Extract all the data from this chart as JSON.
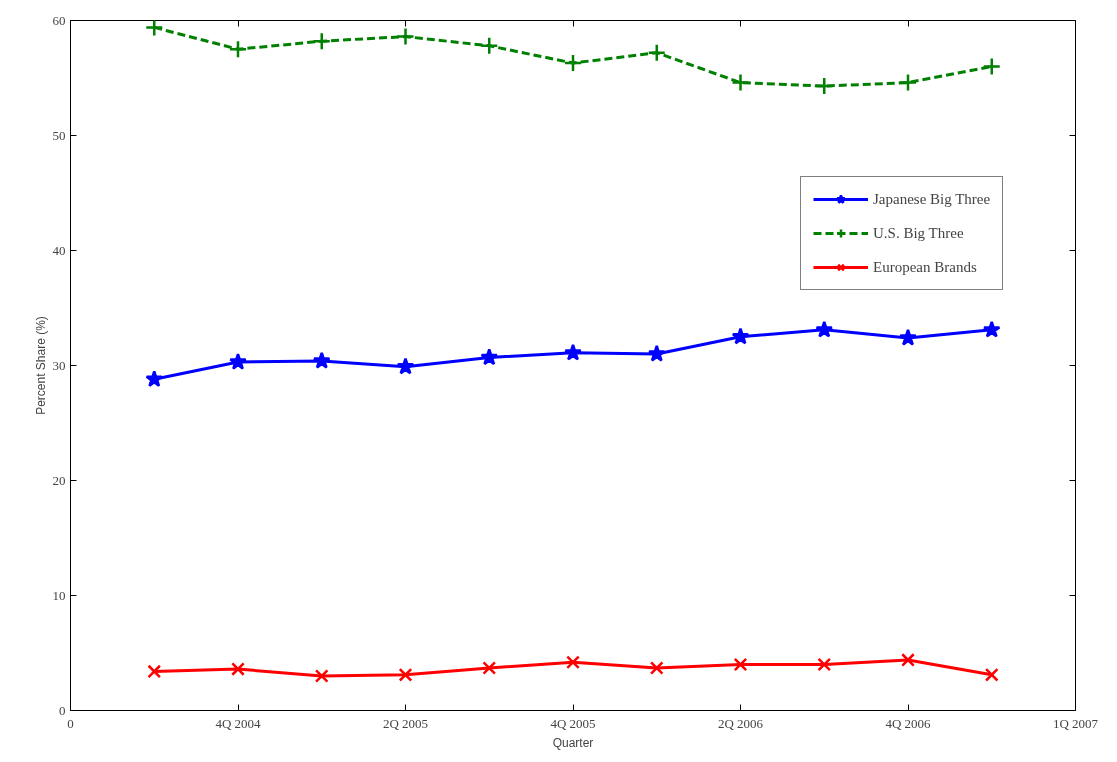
{
  "chart_data": {
    "type": "line",
    "xlabel": "Quarter",
    "ylabel": "Percent Share (%)",
    "categories": [
      "0",
      null,
      "4Q 2004",
      null,
      "2Q 2005",
      null,
      "4Q 2005",
      null,
      "2Q 2006",
      null,
      "4Q 2006",
      null,
      "1Q 2007"
    ],
    "ylim": [
      0,
      60
    ],
    "yticks": [
      0,
      10,
      20,
      30,
      40,
      50,
      60
    ],
    "grid": false,
    "legend": "top right",
    "series": [
      {
        "name": "Japanese Big Three",
        "color": "#0000ff",
        "marker": "star",
        "line_style": "solid",
        "values": [
          null,
          28.8,
          30.3,
          30.4,
          29.9,
          30.7,
          31.1,
          31.0,
          32.5,
          33.1,
          32.4,
          33.1,
          null
        ]
      },
      {
        "name": "U.S. Big Three",
        "color": "#008000",
        "marker": "cross",
        "line_style": "dashed",
        "values": [
          null,
          59.4,
          57.5,
          58.2,
          58.6,
          57.8,
          56.3,
          57.2,
          54.6,
          54.3,
          54.6,
          56.0,
          null
        ]
      },
      {
        "name": "European Brands",
        "color": "#ff0000",
        "marker": "x",
        "line_style": "solid",
        "values": [
          null,
          3.4,
          3.6,
          3.0,
          3.1,
          3.7,
          4.2,
          3.7,
          4.0,
          4.0,
          4.4,
          3.1,
          null
        ]
      }
    ]
  }
}
